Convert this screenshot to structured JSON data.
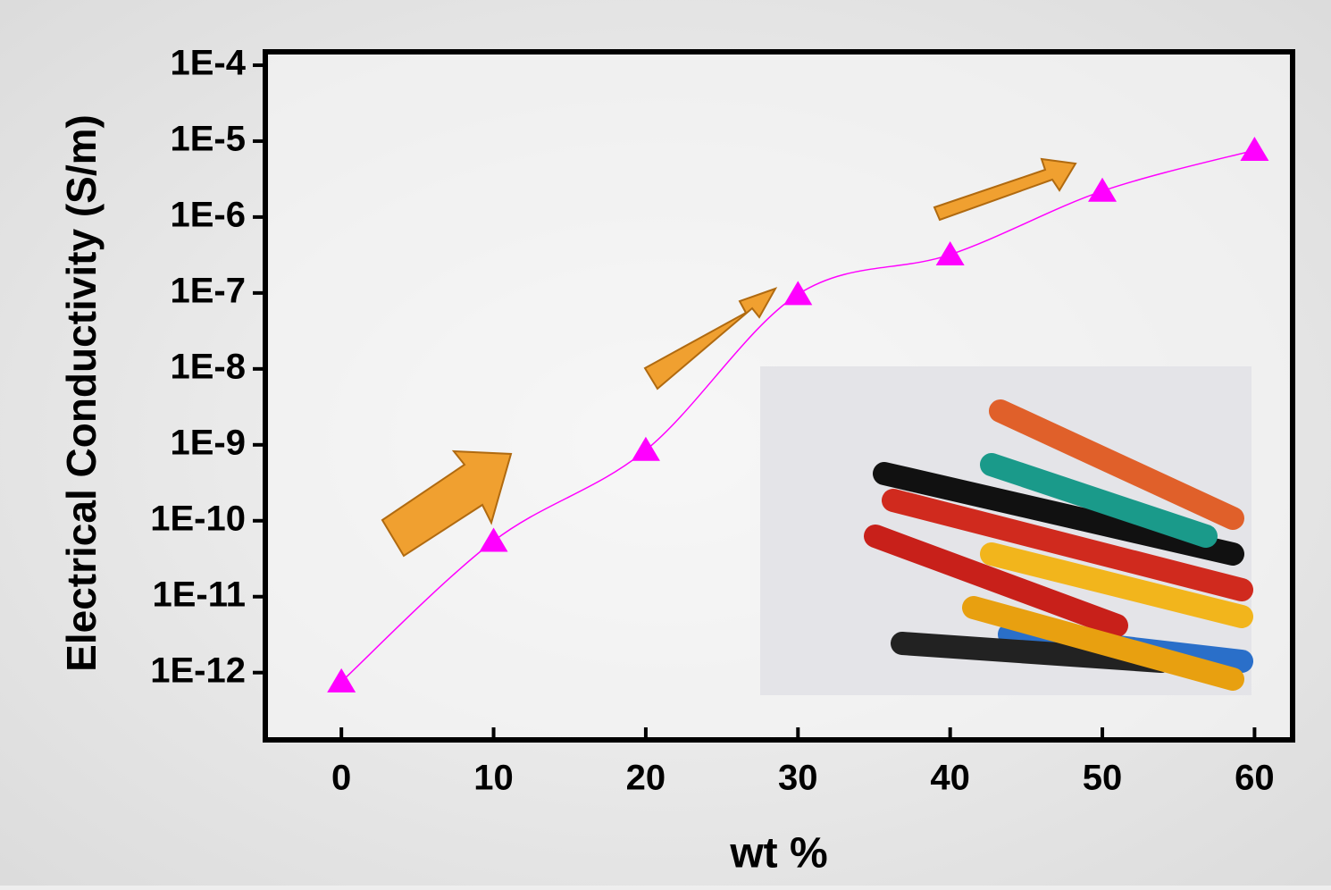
{
  "chart_data": {
    "type": "line",
    "x_label": "wt %",
    "y_label": "Electrical Conductivity (S/m)",
    "x": [
      0,
      10,
      20,
      30,
      40,
      50,
      60
    ],
    "series": [
      {
        "color": "#ff00ff",
        "values": [
          7.6e-13,
          5.4e-11,
          8.5e-10,
          9.6e-08,
          3.2e-07,
          2.2e-06,
          7.6e-06
        ]
      }
    ],
    "xlim": [
      -5,
      62.5
    ],
    "xticks": [
      0,
      10,
      20,
      30,
      40,
      50,
      60
    ],
    "ylim": [
      1.3e-13,
      0.00015
    ],
    "log_y": true,
    "yticks": [
      {
        "value": 0.0001,
        "label": "1E-4"
      },
      {
        "value": 1e-05,
        "label": "1E-5"
      },
      {
        "value": 1e-06,
        "label": "1E-6"
      },
      {
        "value": 1e-07,
        "label": "1E-7"
      },
      {
        "value": 1e-08,
        "label": "1E-8"
      },
      {
        "value": 1e-09,
        "label": "1E-9"
      },
      {
        "value": 1e-10,
        "label": "1E-10"
      },
      {
        "value": 1e-11,
        "label": "1E-11"
      },
      {
        "value": 1e-12,
        "label": "1E-12"
      }
    ]
  }
}
